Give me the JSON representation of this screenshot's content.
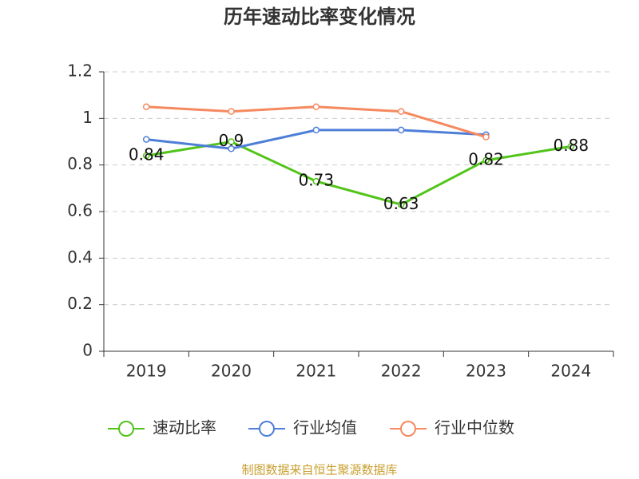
{
  "chart_data": {
    "type": "line",
    "title": "历年速动比率变化情况",
    "categories": [
      "2019",
      "2020",
      "2021",
      "2022",
      "2023",
      "2024"
    ],
    "series": [
      {
        "name": "速动比率",
        "color": "#52c41a",
        "values": [
          0.84,
          0.9,
          0.73,
          0.63,
          0.82,
          0.88
        ],
        "show_labels": true
      },
      {
        "name": "行业均值",
        "color": "#4e7fd8",
        "values": [
          0.91,
          0.87,
          0.95,
          0.95,
          0.93,
          null
        ],
        "show_labels": false
      },
      {
        "name": "行业中位数",
        "color": "#f5895f",
        "values": [
          1.05,
          1.03,
          1.05,
          1.03,
          0.92,
          null
        ],
        "show_labels": false
      }
    ],
    "ylim": [
      0,
      1.2
    ],
    "yticks": [
      0,
      0.2,
      0.4,
      0.6,
      0.8,
      1,
      1.2
    ],
    "grid": true,
    "source": "制图数据来自恒生聚源数据库"
  }
}
